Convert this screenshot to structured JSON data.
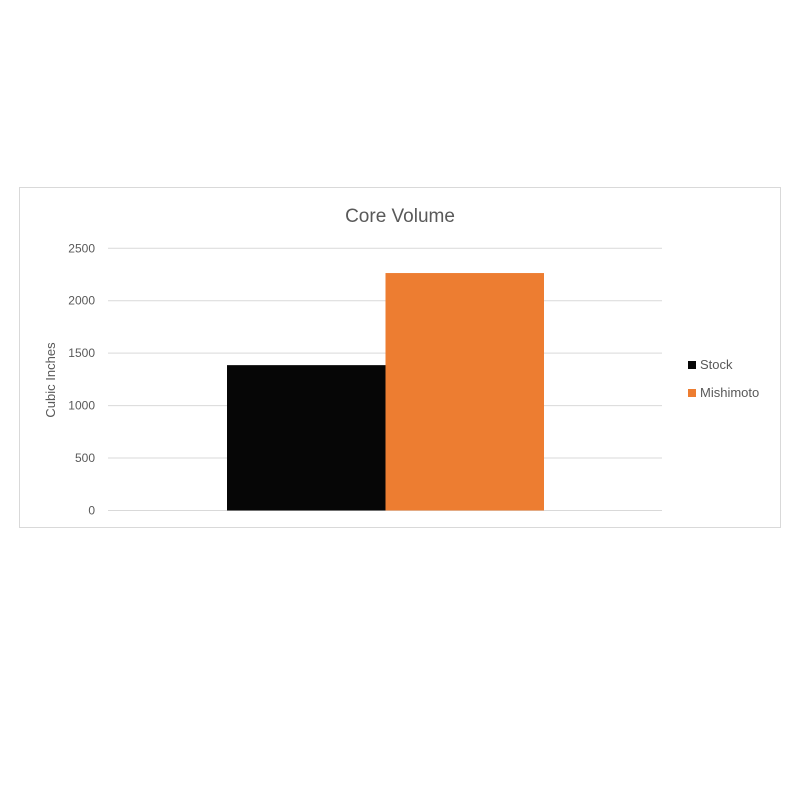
{
  "chart_data": {
    "type": "bar",
    "title": "Core Volume",
    "xlabel": "",
    "ylabel": "Cubic Inches",
    "ylim": [
      0,
      2500
    ],
    "yticks": [
      0,
      500,
      1000,
      1500,
      2000,
      2500
    ],
    "grid": true,
    "legend_position": "right",
    "categories": [
      ""
    ],
    "series": [
      {
        "name": "Stock",
        "values": [
          1386
        ],
        "color": "#060606"
      },
      {
        "name": "Mishimoto",
        "values": [
          2264
        ],
        "color": "#ed7d31"
      }
    ]
  }
}
